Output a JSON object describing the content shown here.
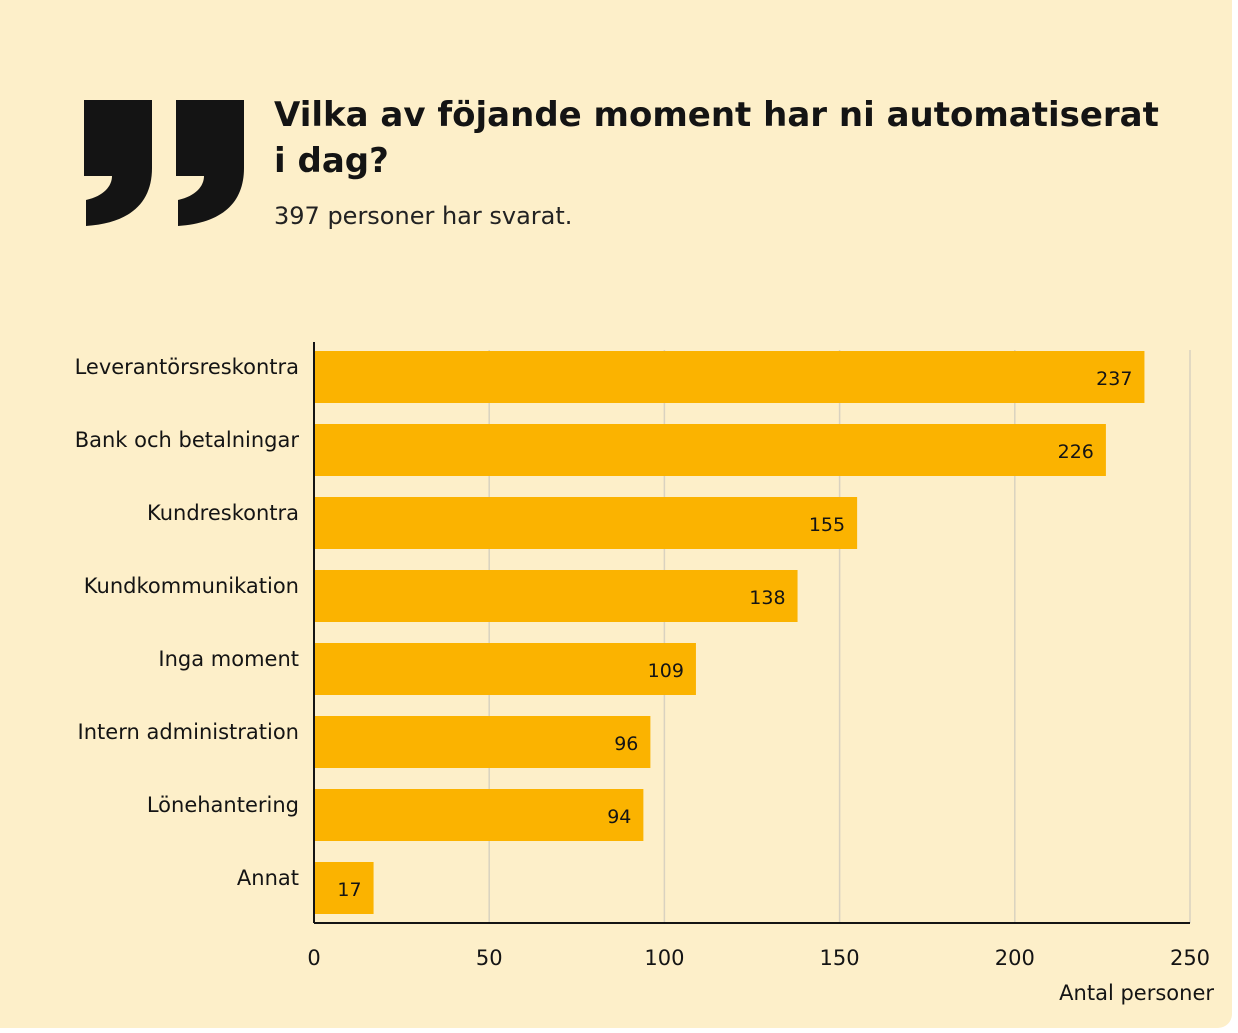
{
  "header": {
    "title": "Vilka av föjande moment har ni automatiserat i dag?",
    "subtitle": "397 personer har svarat."
  },
  "colors": {
    "background": "#fdefc9",
    "bar": "#fbb300",
    "text": "#141414",
    "grid": "#d9d2c0"
  },
  "icons": {
    "quote": "closing-quote-icon"
  },
  "chart_data": {
    "type": "bar",
    "orientation": "horizontal",
    "categories": [
      "Leverantörsreskontra",
      "Bank och betalningar",
      "Kundreskontra",
      "Kundkommunikation",
      "Inga moment",
      "Intern administration",
      "Lönehantering",
      "Annat"
    ],
    "values": [
      237,
      226,
      155,
      138,
      109,
      96,
      94,
      17
    ],
    "data_labels": [
      "237",
      "226",
      "155",
      "138",
      "109",
      "96",
      "94",
      "17"
    ],
    "xlim": [
      0,
      250
    ],
    "xticks": [
      0,
      50,
      100,
      150,
      200,
      250
    ],
    "xtick_labels": [
      "0",
      "50",
      "100",
      "150",
      "200",
      "250"
    ],
    "xlabel": "Antal personer",
    "grid": "vertical",
    "legend": "none"
  }
}
